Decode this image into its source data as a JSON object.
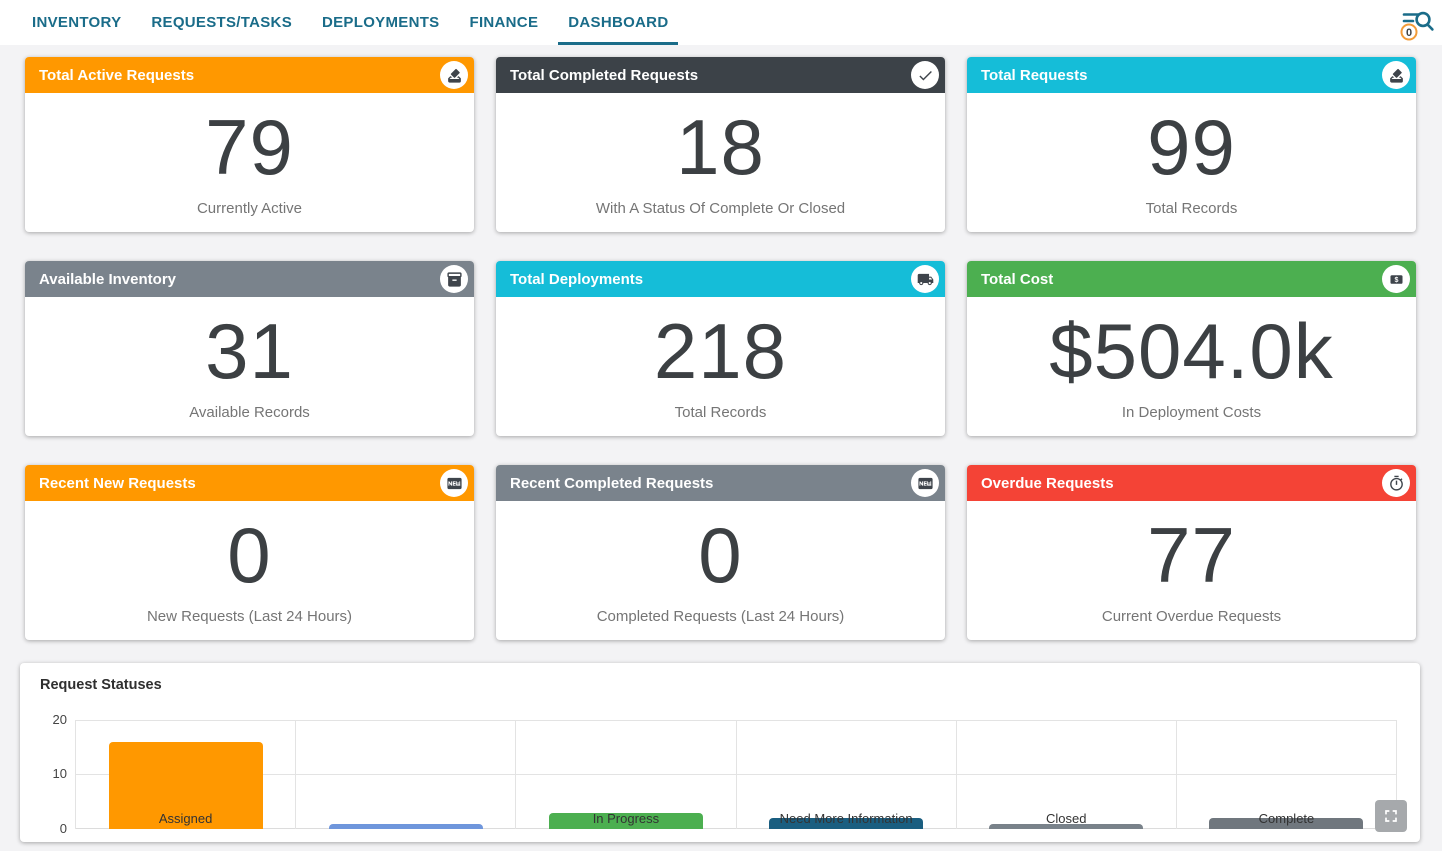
{
  "nav": {
    "tabs": [
      {
        "label": "INVENTORY"
      },
      {
        "label": "REQUESTS/TASKS"
      },
      {
        "label": "DEPLOYMENTS"
      },
      {
        "label": "FINANCE"
      },
      {
        "label": "DASHBOARD"
      }
    ],
    "active_tab": "DASHBOARD",
    "search_badge": "0"
  },
  "theme": {
    "nav_color": "#1A6C89",
    "page_bg": "#F3F3F5",
    "badge_border": "#F29B38"
  },
  "cards": [
    {
      "title": "Total Active Requests",
      "value": "79",
      "subtitle": "Currently Active",
      "header_color": "#FF9800",
      "icon": "ballot-icon"
    },
    {
      "title": "Total Completed Requests",
      "value": "18",
      "subtitle": "With A Status Of Complete Or Closed",
      "header_color": "#3C4248",
      "icon": "check-icon"
    },
    {
      "title": "Total Requests",
      "value": "99",
      "subtitle": "Total Records",
      "header_color": "#15BDD8",
      "icon": "ballot-icon"
    },
    {
      "title": "Available Inventory",
      "value": "31",
      "subtitle": "Available Records",
      "header_color": "#7A838C",
      "icon": "inventory-icon"
    },
    {
      "title": "Total Deployments",
      "value": "218",
      "subtitle": "Total Records",
      "header_color": "#15BDD8",
      "icon": "truck-icon"
    },
    {
      "title": "Total Cost",
      "value": "$504.0k",
      "subtitle": "In Deployment Costs",
      "header_color": "#4CAF50",
      "icon": "money-icon"
    },
    {
      "title": "Recent New Requests",
      "value": "0",
      "subtitle": "New Requests (Last 24 Hours)",
      "header_color": "#FF9800",
      "icon": "new-icon"
    },
    {
      "title": "Recent Completed Requests",
      "value": "0",
      "subtitle": "Completed Requests (Last 24 Hours)",
      "header_color": "#7A838C",
      "icon": "new-icon"
    },
    {
      "title": "Overdue Requests",
      "value": "77",
      "subtitle": "Current Overdue Requests",
      "header_color": "#F44336",
      "icon": "timer-icon"
    }
  ],
  "chart_data": {
    "type": "bar",
    "title": "Request Statuses",
    "categories": [
      "Assigned",
      "",
      "In Progress",
      "Need More Information",
      "Closed",
      "Complete"
    ],
    "values": [
      16,
      1,
      3,
      2,
      1,
      2
    ],
    "colors": [
      "#FF9800",
      "#6F96DC",
      "#4CAF50",
      "#1A5E80",
      "#79828A",
      "#70777E"
    ],
    "xlabel": "",
    "ylabel": "",
    "ylim": [
      0,
      20
    ],
    "yticks": [
      "20",
      "10",
      "0"
    ],
    "grid": true,
    "legend": "none"
  }
}
